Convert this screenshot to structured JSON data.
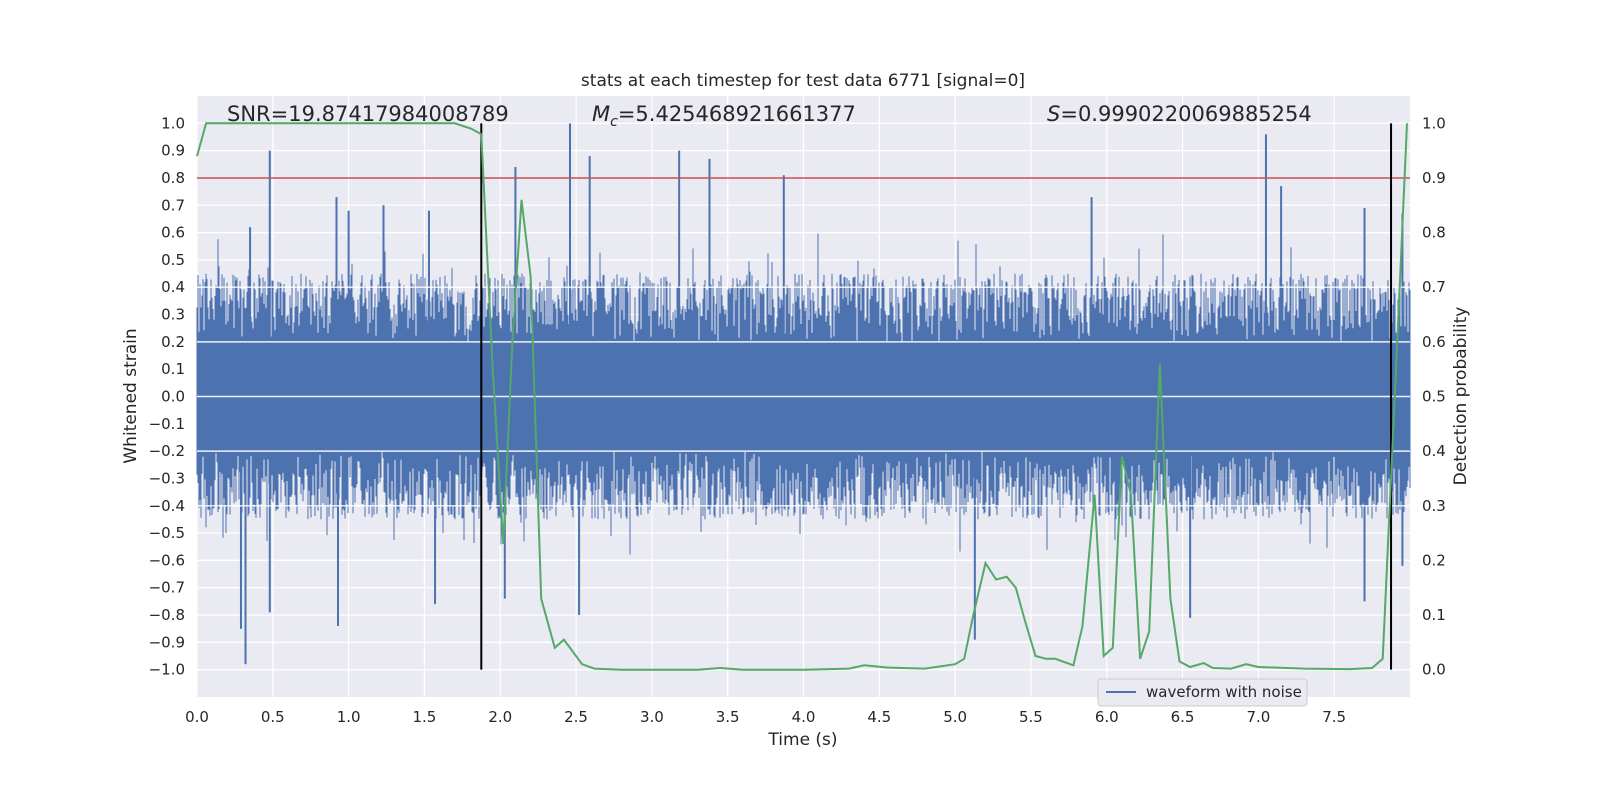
{
  "chart_data": {
    "type": "line",
    "title": "stats at each timestep for test data 6771 [signal=0]",
    "xlabel": "Time (s)",
    "ylabel_left": "Whitened strain",
    "ylabel_right": "Detection probability",
    "xlim": [
      0.0,
      8.0
    ],
    "ylim_left": [
      -1.1,
      1.1
    ],
    "ylim_right": [
      -0.05,
      1.05
    ],
    "grid": true,
    "x_ticks": [
      "0.0",
      "0.5",
      "1.0",
      "1.5",
      "2.0",
      "2.5",
      "3.0",
      "3.5",
      "4.0",
      "4.5",
      "5.0",
      "5.5",
      "6.0",
      "6.5",
      "7.0",
      "7.5"
    ],
    "y_left_ticks": [
      "1.0",
      "0.9",
      "0.8",
      "0.7",
      "0.6",
      "0.5",
      "0.4",
      "0.3",
      "0.2",
      "0.1",
      "0.0",
      "−0.1",
      "−0.2",
      "−0.3",
      "−0.4",
      "−0.5",
      "−0.6",
      "−0.7",
      "−0.8",
      "−0.9",
      "−1.0"
    ],
    "y_right_ticks": [
      "1.0",
      "0.9",
      "0.8",
      "0.7",
      "0.6",
      "0.5",
      "0.4",
      "0.3",
      "0.2",
      "0.1",
      "0.0"
    ],
    "annotations": {
      "snr": "SNR=19.87417984008789",
      "mc_symbol": "M",
      "mc_sub": "c",
      "mc_value": "=5.425468921661377",
      "s_symbol": "S",
      "s_value": "=0.9990220069885254"
    },
    "threshold_line": {
      "y_left": 0.8,
      "color": "#c44e52"
    },
    "vertical_lines": [
      1.875,
      7.875
    ],
    "series": [
      {
        "name": "waveform with noise",
        "axis": "left",
        "color": "#4c72b0",
        "envelope": {
          "core_low": -0.2,
          "core_high": 0.2,
          "typical_low": -0.45,
          "typical_high": 0.45,
          "peaks_high": [
            {
              "x": 0.48,
              "y": 0.9
            },
            {
              "x": 0.35,
              "y": 0.62
            },
            {
              "x": 0.92,
              "y": 0.73
            },
            {
              "x": 1.0,
              "y": 0.68
            },
            {
              "x": 1.53,
              "y": 0.68
            },
            {
              "x": 1.23,
              "y": 0.7
            },
            {
              "x": 2.1,
              "y": 0.84
            },
            {
              "x": 2.46,
              "y": 1.0
            },
            {
              "x": 2.59,
              "y": 0.88
            },
            {
              "x": 3.18,
              "y": 0.9
            },
            {
              "x": 3.38,
              "y": 0.87
            },
            {
              "x": 3.87,
              "y": 0.81
            },
            {
              "x": 5.9,
              "y": 0.73
            },
            {
              "x": 7.05,
              "y": 0.96
            },
            {
              "x": 7.15,
              "y": 0.77
            },
            {
              "x": 7.7,
              "y": 0.69
            },
            {
              "x": 7.95,
              "y": 0.67
            }
          ],
          "peaks_low": [
            {
              "x": 0.32,
              "y": -0.98
            },
            {
              "x": 0.29,
              "y": -0.85
            },
            {
              "x": 0.48,
              "y": -0.79
            },
            {
              "x": 0.93,
              "y": -0.84
            },
            {
              "x": 1.57,
              "y": -0.76
            },
            {
              "x": 2.03,
              "y": -0.74
            },
            {
              "x": 2.52,
              "y": -0.8
            },
            {
              "x": 5.13,
              "y": -0.89
            },
            {
              "x": 6.55,
              "y": -0.81
            },
            {
              "x": 7.7,
              "y": -0.75
            },
            {
              "x": 7.95,
              "y": -0.62
            }
          ]
        }
      },
      {
        "name": "",
        "axis": "right",
        "color": "#55a868",
        "x": [
          0.0,
          0.06,
          0.3,
          0.6,
          0.9,
          1.2,
          1.5,
          1.7,
          1.81,
          1.875,
          1.95,
          2.02,
          2.08,
          2.14,
          2.2,
          2.27,
          2.36,
          2.42,
          2.54,
          2.62,
          2.8,
          3.0,
          3.3,
          3.45,
          3.6,
          3.8,
          4.0,
          4.3,
          4.4,
          4.55,
          4.65,
          4.8,
          5.0,
          5.06,
          5.12,
          5.2,
          5.27,
          5.34,
          5.4,
          5.46,
          5.53,
          5.6,
          5.66,
          5.78,
          5.84,
          5.92,
          5.98,
          6.04,
          6.1,
          6.16,
          6.22,
          6.28,
          6.35,
          6.42,
          6.48,
          6.55,
          6.64,
          6.7,
          6.82,
          6.92,
          7.0,
          7.3,
          7.6,
          7.75,
          7.82,
          7.9,
          7.98
        ],
        "y": [
          0.94,
          1.0,
          1.0,
          1.0,
          1.0,
          1.0,
          1.0,
          1.0,
          0.99,
          0.98,
          0.55,
          0.23,
          0.6,
          0.86,
          0.72,
          0.13,
          0.04,
          0.055,
          0.01,
          0.002,
          0.0,
          0.0,
          0.0,
          0.003,
          0.0,
          0.0,
          0.0,
          0.002,
          0.008,
          0.004,
          0.003,
          0.002,
          0.01,
          0.02,
          0.1,
          0.195,
          0.165,
          0.17,
          0.15,
          0.09,
          0.025,
          0.02,
          0.02,
          0.008,
          0.08,
          0.32,
          0.025,
          0.04,
          0.39,
          0.32,
          0.02,
          0.07,
          0.56,
          0.13,
          0.015,
          0.005,
          0.012,
          0.003,
          0.002,
          0.01,
          0.005,
          0.002,
          0.001,
          0.003,
          0.02,
          0.5,
          1.0
        ]
      }
    ],
    "legend": {
      "placement": "lower-center-right",
      "entries": [
        "waveform with noise"
      ]
    }
  }
}
